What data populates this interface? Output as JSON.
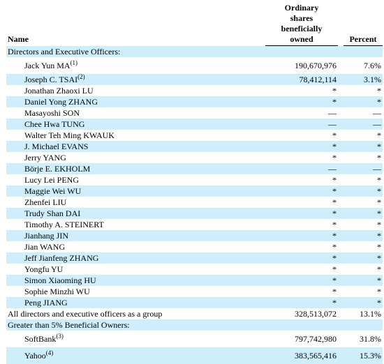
{
  "header": {
    "name": "Name",
    "shares_line1": "Ordinary",
    "shares_line2": "shares",
    "shares_line3": "beneficially",
    "shares_line4": "owned",
    "percent": "Percent"
  },
  "sections": {
    "directors": "Directors and Executive Officers:",
    "beneficial": "Greater than 5% Beneficial Owners:"
  },
  "rows": [
    {
      "name": "Jack Yun MA",
      "note": "(1)",
      "shares": "190,670,976",
      "percent": "7.6%"
    },
    {
      "name": "Joseph C. TSAI",
      "note": "(2)",
      "shares": "78,412,114",
      "percent": "3.1%"
    },
    {
      "name": "Jonathan Zhaoxi LU",
      "shares": "*",
      "percent": "*"
    },
    {
      "name": "Daniel Yong ZHANG",
      "shares": "*",
      "percent": "*"
    },
    {
      "name": "Masayoshi SON",
      "shares": "—",
      "percent": "—"
    },
    {
      "name": "Chee Hwa TUNG",
      "shares": "—",
      "percent": "—"
    },
    {
      "name": "Walter Teh Ming KWAUK",
      "shares": "*",
      "percent": "*"
    },
    {
      "name": "J. Michael EVANS",
      "shares": "*",
      "percent": "*"
    },
    {
      "name": "Jerry YANG",
      "shares": "*",
      "percent": "*"
    },
    {
      "name": "Börje E. EKHOLM",
      "shares": "—",
      "percent": "—"
    },
    {
      "name": "Lucy Lei PENG",
      "shares": "*",
      "percent": "*"
    },
    {
      "name": "Maggie Wei WU",
      "shares": "*",
      "percent": "*"
    },
    {
      "name": "Zhenfei LIU",
      "shares": "*",
      "percent": "*"
    },
    {
      "name": "Trudy Shan DAI",
      "shares": "*",
      "percent": "*"
    },
    {
      "name": "Timothy A. STEINERT",
      "shares": "*",
      "percent": "*"
    },
    {
      "name": "Jianhang JIN",
      "shares": "*",
      "percent": "*"
    },
    {
      "name": "Jian WANG",
      "shares": "*",
      "percent": "*"
    },
    {
      "name": "Jeff Jianfeng ZHANG",
      "shares": "*",
      "percent": "*"
    },
    {
      "name": "Yongfu YU",
      "shares": "*",
      "percent": "*"
    },
    {
      "name": "Simon Xiaoming HU",
      "shares": "*",
      "percent": "*"
    },
    {
      "name": "Sophie Minzhi WU",
      "shares": "*",
      "percent": "*"
    },
    {
      "name": "Peng JIANG",
      "shares": "*",
      "percent": "*"
    }
  ],
  "group_total": {
    "name": "All directors and executive officers as a group",
    "shares": "328,513,072",
    "percent": "13.1%"
  },
  "owners": [
    {
      "name": "SoftBank",
      "note": "(3)",
      "shares": "797,742,980",
      "percent": "31.8%"
    },
    {
      "name": "Yahoo",
      "note": "(4)",
      "shares": "383,565,416",
      "percent": "15.3%"
    }
  ],
  "colors": {
    "row_shade": "#cdeefa",
    "text": "#000000",
    "background": "#ffffff"
  }
}
